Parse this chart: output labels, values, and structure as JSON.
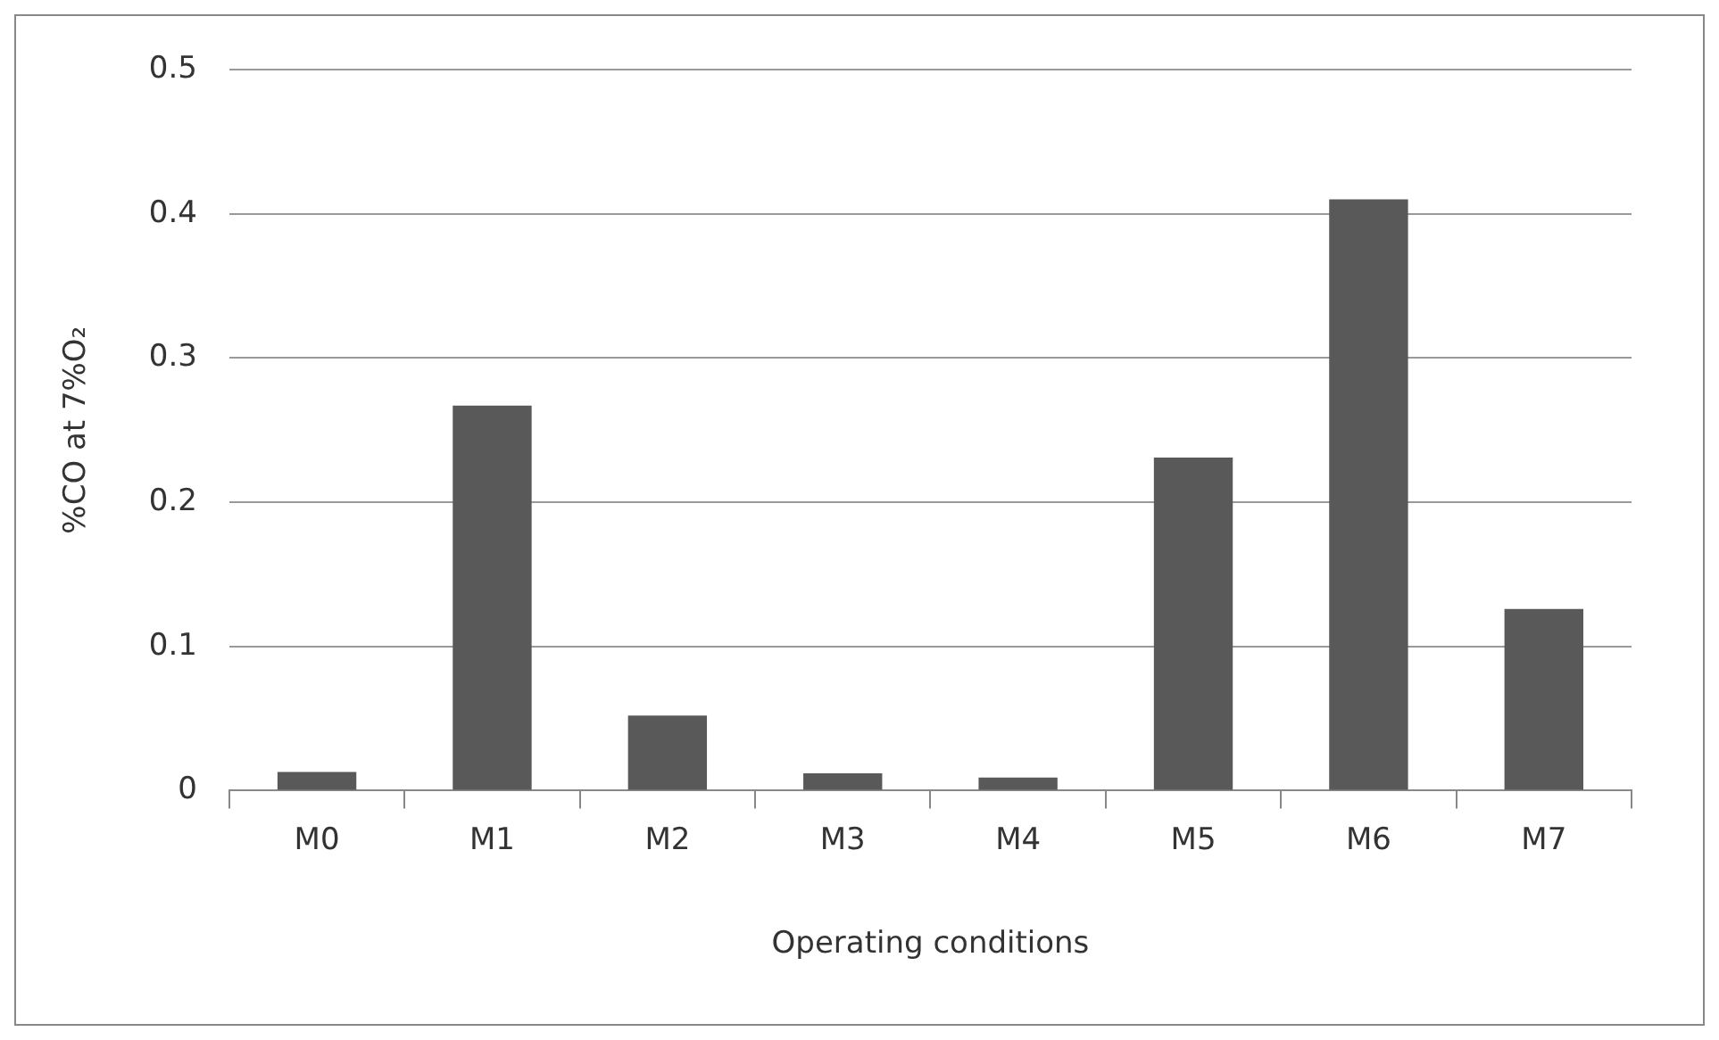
{
  "chart_data": {
    "type": "bar",
    "xlabel": "Operating conditions",
    "ylabel": "%CO at 7%O₂",
    "categories": [
      "M0",
      "M1",
      "M2",
      "M3",
      "M4",
      "M5",
      "M6",
      "M7"
    ],
    "values": [
      0.013,
      0.267,
      0.052,
      0.012,
      0.009,
      0.231,
      0.41,
      0.126
    ],
    "color": "#595959",
    "ylim": [
      0,
      0.5
    ],
    "yticks": [
      0,
      0.1,
      0.2,
      0.3,
      0.4,
      0.5
    ],
    "grid": "y",
    "legend": false
  }
}
